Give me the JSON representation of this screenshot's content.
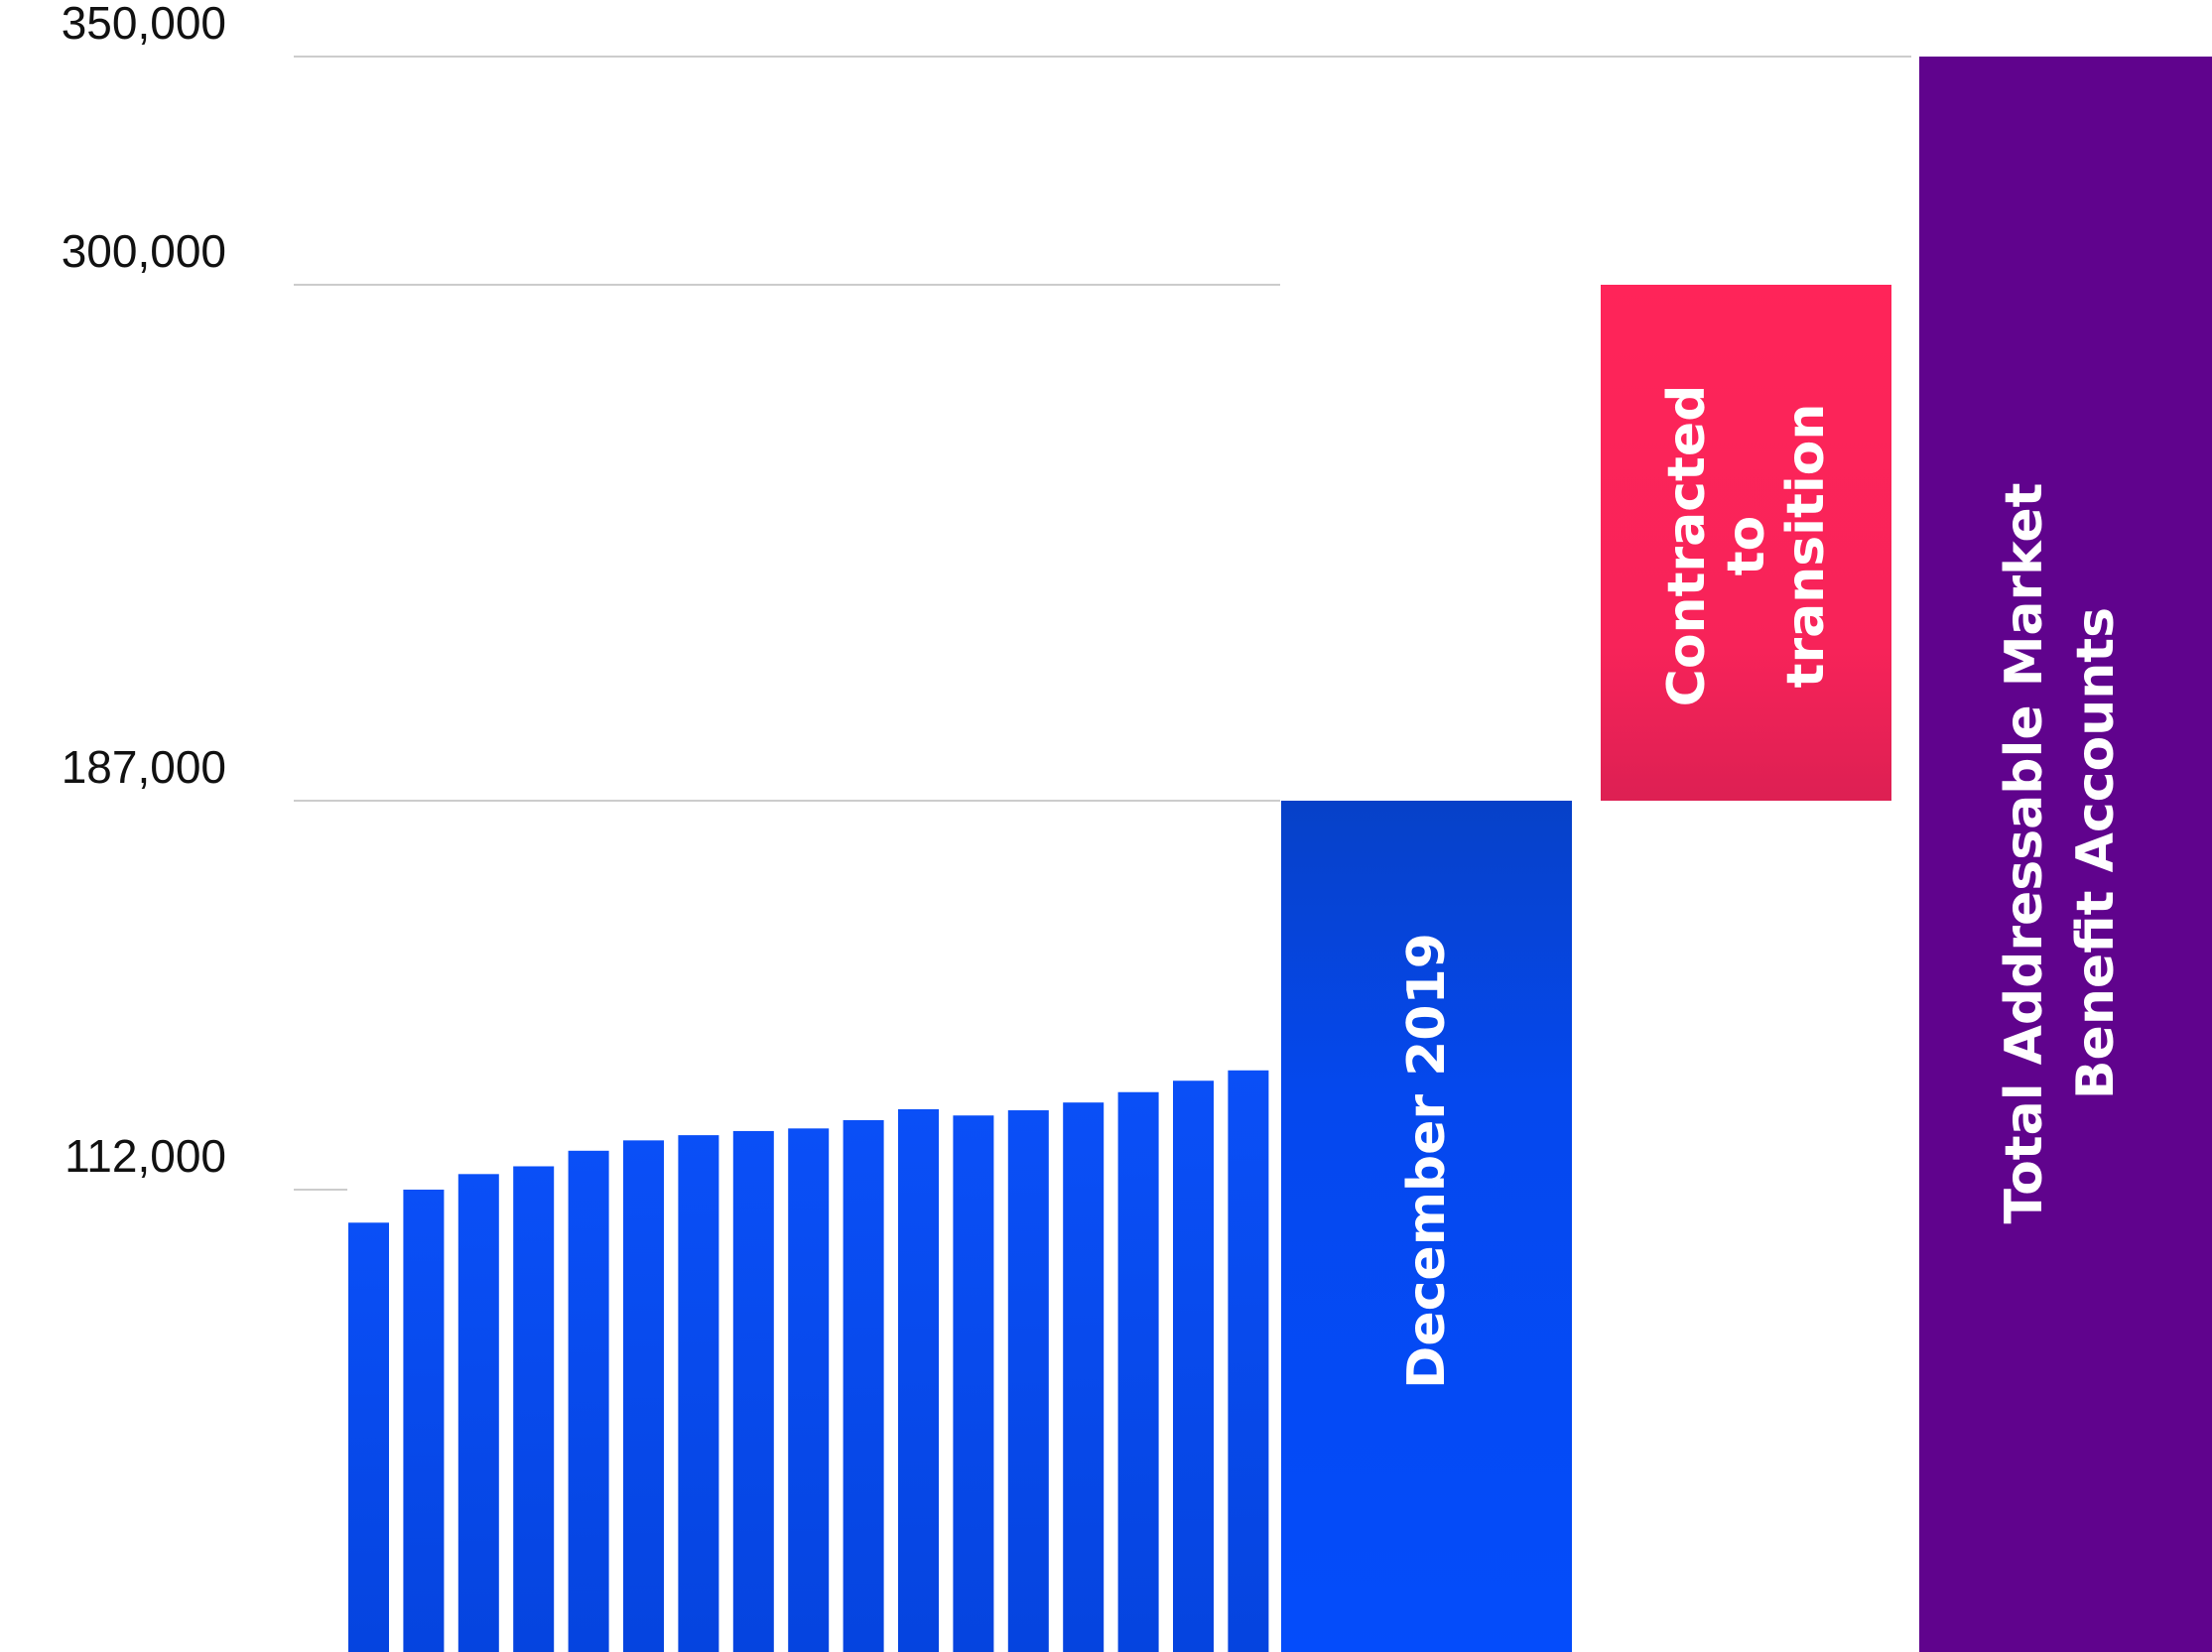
{
  "chart_data": {
    "type": "bar",
    "y_ticks": [
      {
        "value": 350000,
        "label": "350,000"
      },
      {
        "value": 300000,
        "label": "300,000"
      },
      {
        "value": 187000,
        "label": "187,000"
      },
      {
        "value": 112000,
        "label": "112,000"
      }
    ],
    "monthly_series": {
      "values": [
        104000,
        112000,
        115000,
        116500,
        119500,
        121500,
        122500,
        123300,
        123800,
        125400,
        127500,
        126300,
        127300,
        128800,
        130800,
        133000,
        135000
      ],
      "color": "#0a4df5"
    },
    "summary_bars": [
      {
        "label": "December 2019",
        "bottom": 0,
        "top": 187000,
        "color": "#0547f0"
      },
      {
        "label": [
          "Contracted",
          "to",
          "transition"
        ],
        "bottom": 187000,
        "top": 300000,
        "color": "#ff2458"
      },
      {
        "label": [
          "Total Addressable Market",
          "Benefit Accounts"
        ],
        "bottom": 0,
        "top": 350000,
        "color": "#60038d"
      }
    ],
    "grid": true,
    "gridline_color": "#cccccc"
  }
}
